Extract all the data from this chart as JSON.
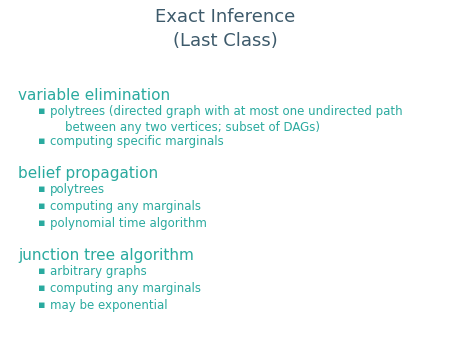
{
  "title": "Exact Inference\n(Last Class)",
  "title_color": "#3d5a6b",
  "title_fontsize": 13,
  "background_color": "#ffffff",
  "heading_color": "#2aaa9f",
  "bullet_color": "#2aaa9f",
  "heading_fontsize": 11,
  "bullet_fontsize": 8.5,
  "sections": [
    {
      "heading": "variable elimination",
      "bullets": [
        "polytrees (directed graph with at most one undirected path\n    between any two vertices; subset of DAGs)",
        "computing specific marginals"
      ]
    },
    {
      "heading": "belief propagation",
      "bullets": [
        "polytrees",
        "computing any marginals",
        "polynomial time algorithm"
      ]
    },
    {
      "heading": "junction tree algorithm",
      "bullets": [
        "arbitrary graphs",
        "computing any marginals",
        "may be exponential"
      ]
    }
  ]
}
